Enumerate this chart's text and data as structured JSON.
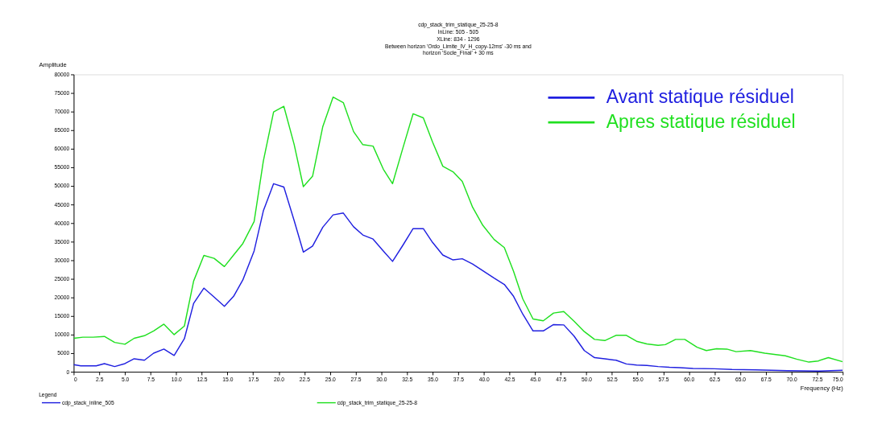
{
  "chart_data": {
    "type": "line",
    "title": "cdp_stack_trim_statique_25-25-8",
    "subtitle": "InLine: 505 - 505\nXLine: 834 - 1296\nBetween horizon 'Ordo_Limite_IV_H_copy-12ms' -30 ms and\nhorizon 'Socle_Final' + 30 ms",
    "xlabel": "Frequency (Hz)",
    "ylabel": "Amplitude",
    "xlim": [
      0,
      75
    ],
    "xticks": [
      {
        "value": 0,
        "label": "0"
      },
      2.5,
      {
        "value": 5,
        "label": "5.0"
      },
      7.5,
      {
        "value": 10,
        "label": "10.0"
      },
      12.5,
      {
        "value": 15,
        "label": "15.0"
      },
      17.5,
      {
        "value": 20,
        "label": "20.0"
      },
      22.5,
      {
        "value": 25,
        "label": "25.0"
      },
      27.5,
      {
        "value": 30,
        "label": "30.0"
      },
      32.5,
      {
        "value": 35,
        "label": "35.0"
      },
      37.5,
      {
        "value": 40,
        "label": "40.0"
      },
      42.5,
      {
        "value": 45,
        "label": "45.0"
      },
      47.5,
      {
        "value": 50,
        "label": "50.0"
      },
      52.5,
      {
        "value": 55,
        "label": "55.0"
      },
      57.5,
      {
        "value": 60,
        "label": "60.0"
      },
      62.5,
      {
        "value": 65,
        "label": "65.0"
      },
      67.5,
      {
        "value": 70,
        "label": "70.0"
      },
      72.5,
      {
        "value": 75,
        "label": "75.0"
      }
    ],
    "ylim": [
      0,
      80000
    ],
    "yticks": [
      0,
      5000,
      10000,
      15000,
      20000,
      25000,
      30000,
      35000,
      40000,
      45000,
      50000,
      55000,
      60000,
      65000,
      70000,
      75000,
      80000
    ],
    "grid": false,
    "legend": "top right",
    "marker": "none",
    "line_style": "solid",
    "annotations": [
      "Legend",
      "cdp_stack_inline_505",
      "cdp_stack_trim_statique_25-25-8"
    ],
    "series": [
      {
        "name": "Avant statique résiduel",
        "color": "#2020e0",
        "x": [
          0,
          0.7,
          2.2,
          3.0,
          4.0,
          5.0,
          5.9,
          6.9,
          7.8,
          8.8,
          9.8,
          10.8,
          11.7,
          12.7,
          13.7,
          14.7,
          15.6,
          16.5,
          17.6,
          18.5,
          19.5,
          20.5,
          21.5,
          22.4,
          23.3,
          24.3,
          25.3,
          26.3,
          27.3,
          28.2,
          29.2,
          30.2,
          31.1,
          32.1,
          33.1,
          34.1,
          35.0,
          36.0,
          37.0,
          37.9,
          38.9,
          41.0,
          42.0,
          42.9,
          43.8,
          44.8,
          45.8,
          46.8,
          47.8,
          48.8,
          49.8,
          50.8,
          51.8,
          52.9,
          53.9,
          54.9,
          55.9,
          57.0,
          58.1,
          59.1,
          60.4,
          62.5,
          64.2,
          66.5,
          69.6,
          72.7,
          75
        ],
        "values": [
          1900,
          1600,
          1600,
          2200,
          1400,
          2200,
          3500,
          3100,
          5000,
          6100,
          4400,
          8900,
          18400,
          22500,
          20100,
          17600,
          20300,
          24700,
          32500,
          43300,
          50600,
          49700,
          40700,
          32200,
          33800,
          38900,
          42200,
          42700,
          39000,
          36800,
          35700,
          32500,
          29700,
          34000,
          38500,
          38500,
          34800,
          31400,
          30100,
          30400,
          29000,
          25200,
          23500,
          20300,
          15500,
          11000,
          11000,
          12700,
          12600,
          9600,
          5700,
          3800,
          3500,
          3100,
          2100,
          1800,
          1700,
          1400,
          1200,
          1100,
          900,
          800,
          600,
          500,
          300,
          200,
          400
        ]
      },
      {
        "name": "Apres statique résiduel",
        "color": "#20e020",
        "x": [
          0,
          0.9,
          1.9,
          3.0,
          4.0,
          5.0,
          5.9,
          6.9,
          7.8,
          8.8,
          9.8,
          10.8,
          11.7,
          12.7,
          13.7,
          14.7,
          15.6,
          16.5,
          17.6,
          18.5,
          19.5,
          20.5,
          21.5,
          22.4,
          23.3,
          24.3,
          25.3,
          26.3,
          27.3,
          28.2,
          29.2,
          30.2,
          31.1,
          32.1,
          33.1,
          34.1,
          35.0,
          36.0,
          37.0,
          37.9,
          38.9,
          39.9,
          41.0,
          42.0,
          42.9,
          43.8,
          44.8,
          45.8,
          46.8,
          47.8,
          48.8,
          49.8,
          50.8,
          51.8,
          52.9,
          53.9,
          54.9,
          55.9,
          57.0,
          57.7,
          58.7,
          59.6,
          60.8,
          61.7,
          62.7,
          63.7,
          64.6,
          66.0,
          67.4,
          69.4,
          70.5,
          71.7,
          72.6,
          73.6,
          75
        ],
        "values": [
          9000,
          9300,
          9300,
          9500,
          7900,
          7400,
          9000,
          9700,
          11000,
          12800,
          10000,
          12300,
          24400,
          31300,
          30500,
          28300,
          31400,
          34500,
          40400,
          56700,
          69900,
          71400,
          61200,
          49800,
          52600,
          66000,
          73900,
          72400,
          64600,
          61100,
          60700,
          54500,
          50600,
          60100,
          69400,
          68300,
          61800,
          55300,
          53800,
          51200,
          44300,
          39400,
          35600,
          33400,
          27000,
          19600,
          14200,
          13700,
          15800,
          16200,
          13600,
          10800,
          8700,
          8400,
          9800,
          9800,
          8200,
          7500,
          7100,
          7300,
          8700,
          8700,
          6600,
          5700,
          6200,
          6100,
          5400,
          5700,
          5000,
          4300,
          3400,
          2600,
          2900,
          3800,
          2700
        ]
      }
    ]
  }
}
